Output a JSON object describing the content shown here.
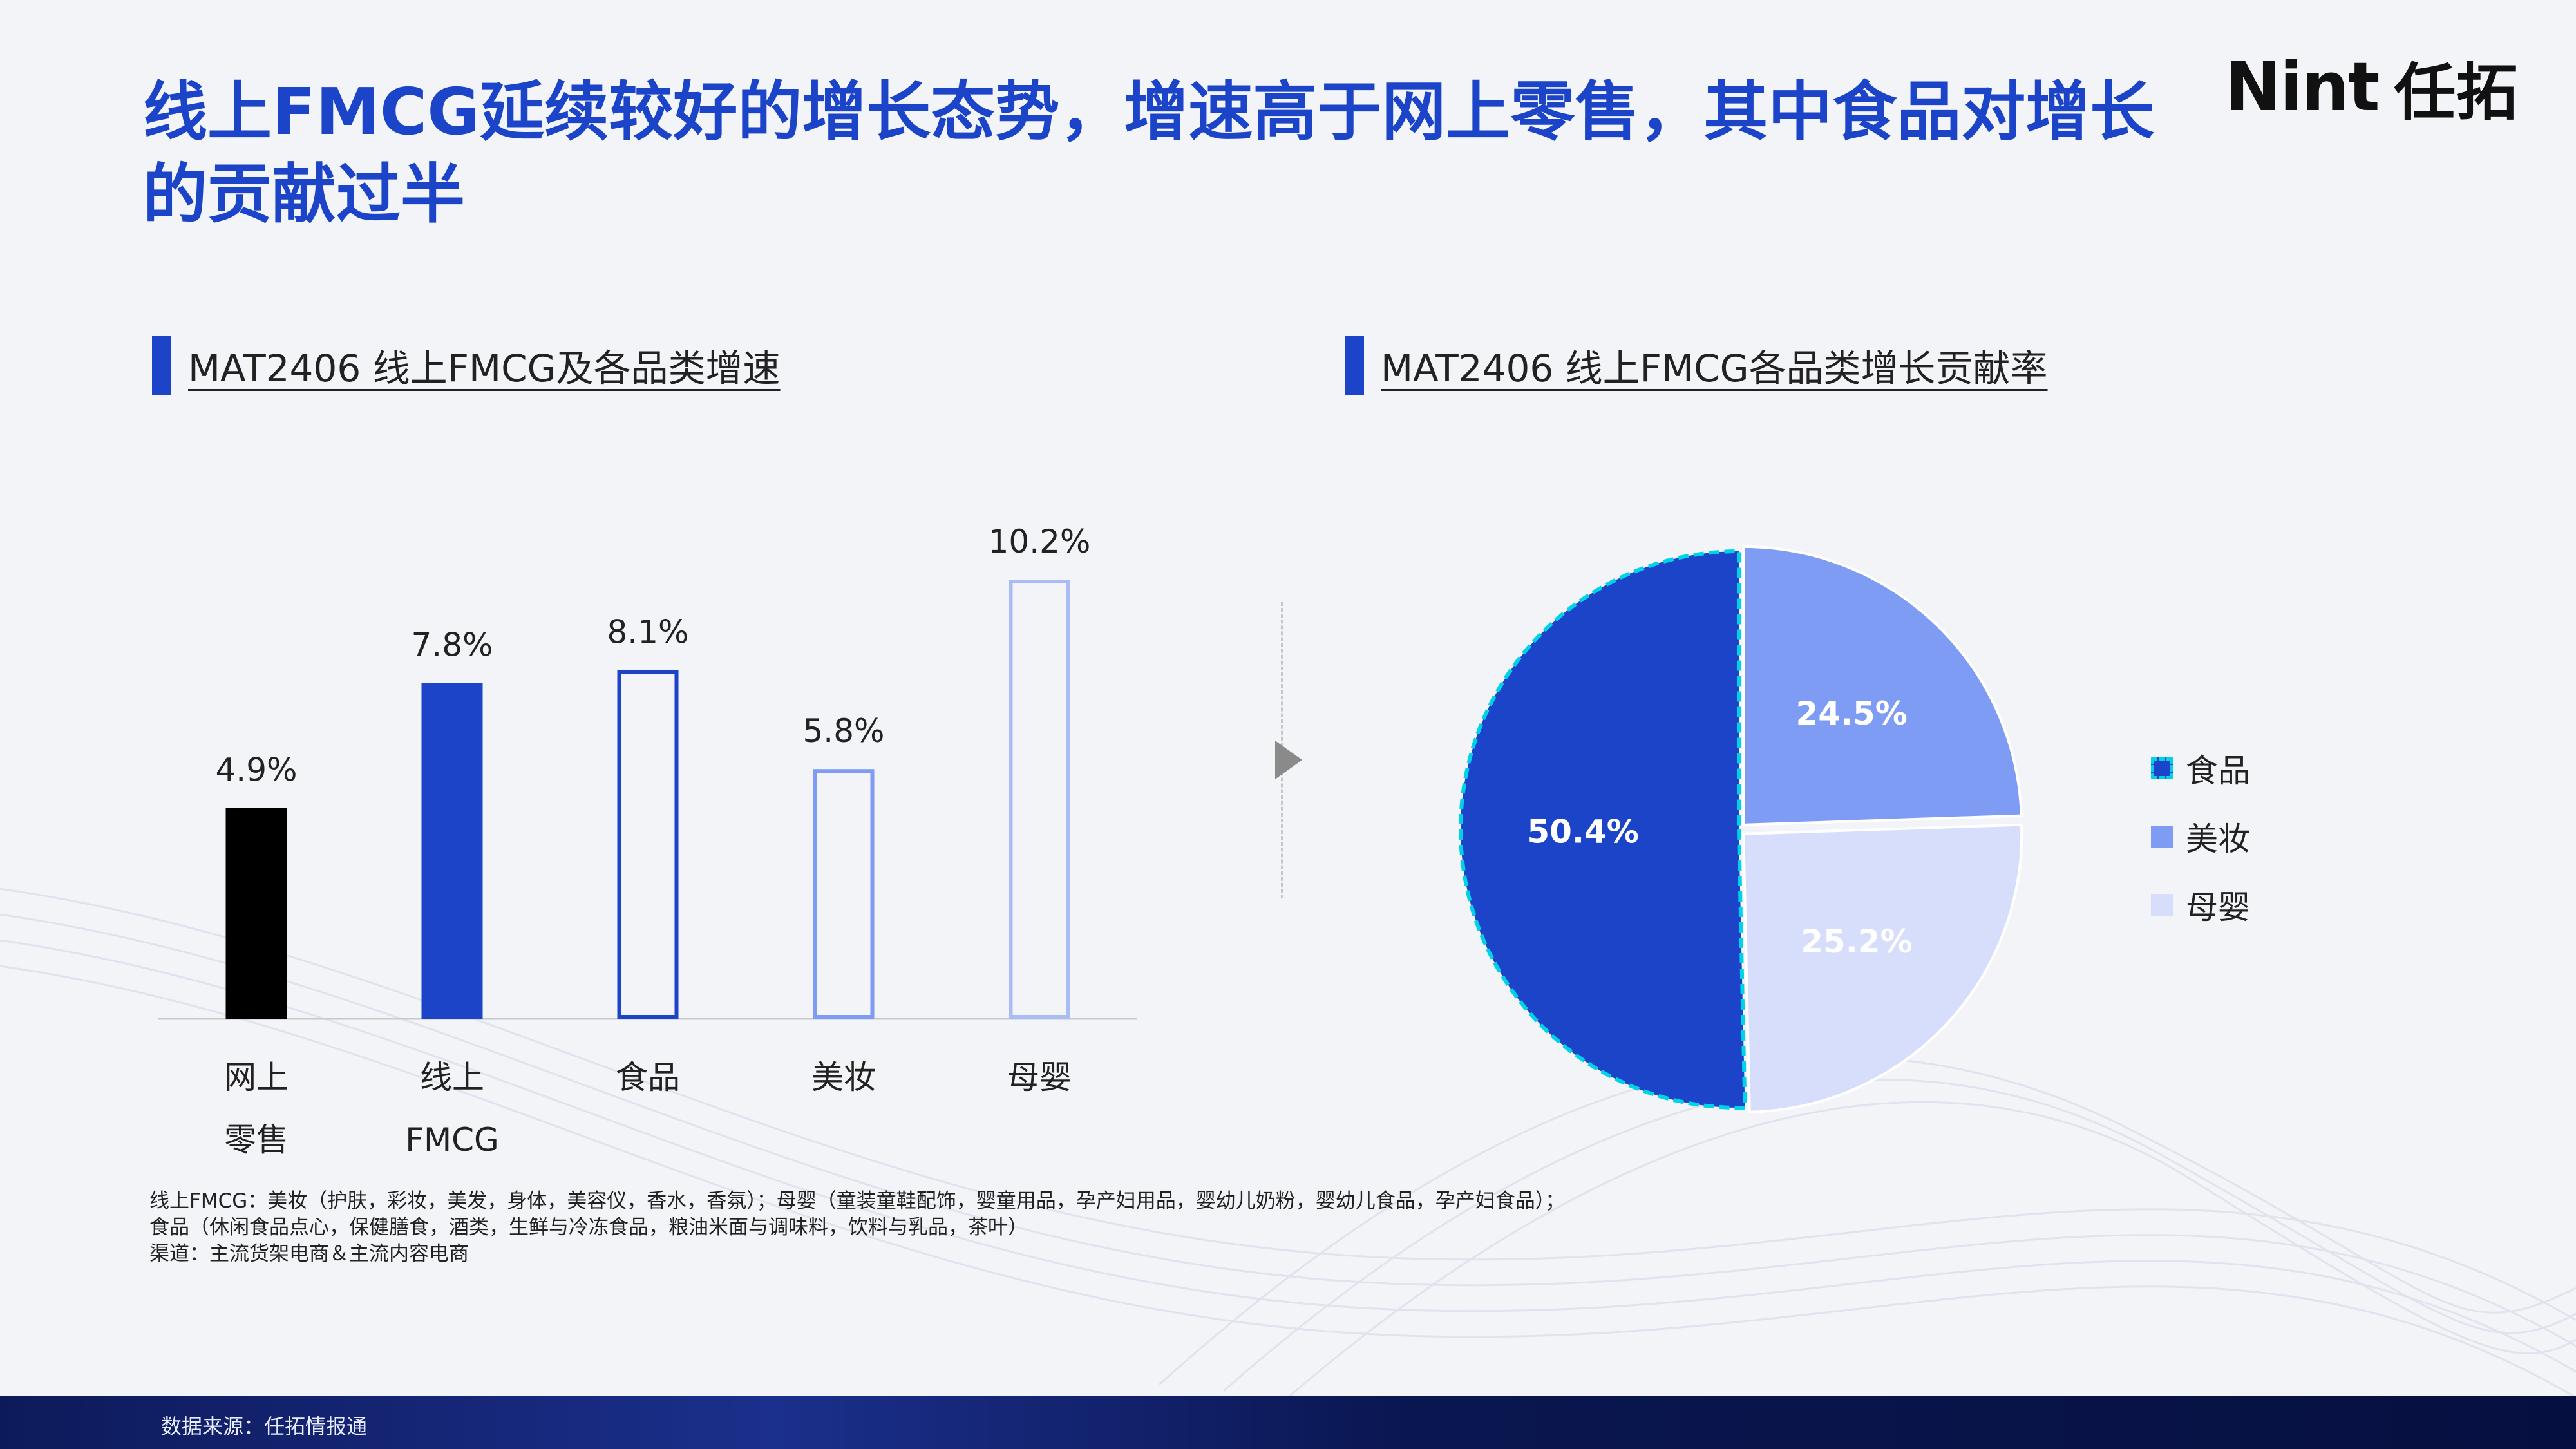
{
  "title": "线上FMCG延续较好的增长态势，增速高于网上零售，其中食品对增长的贡献过半",
  "logo": {
    "en": "Nint",
    "cn": "任拓"
  },
  "left_section_title": "MAT2406 线上FMCG及各品类增速",
  "right_section_title": "MAT2406 线上FMCG各品类增长贡献率",
  "colors": {
    "accent": "#1b44c8",
    "black": "#000000",
    "beauty": "#7f9cf5",
    "baby": "#d6defb",
    "food_outline": "#00d3e8"
  },
  "chart_data": [
    {
      "type": "bar",
      "title": "MAT2406 线上FMCG及各品类增速",
      "categories": [
        [
          "网上",
          "零售"
        ],
        [
          "线上",
          "FMCG"
        ],
        [
          "食品"
        ],
        [
          "美妆"
        ],
        [
          "母婴"
        ]
      ],
      "values": [
        4.9,
        7.8,
        8.1,
        5.8,
        10.2
      ],
      "value_labels": [
        "4.9%",
        "7.8%",
        "8.1%",
        "5.8%",
        "10.2%"
      ],
      "styles": [
        "solid-black",
        "solid-blue",
        "outline-darkblue",
        "outline-blue",
        "outline-lightblue"
      ],
      "unit": "%",
      "grid": false,
      "ylim": [
        0,
        10.2
      ]
    },
    {
      "type": "pie",
      "title": "MAT2406 线上FMCG各品类增长贡献率",
      "labels": [
        "食品",
        "美妆",
        "母婴"
      ],
      "values": [
        50.4,
        24.5,
        25.2
      ],
      "value_labels": [
        "50.4%",
        "24.5%",
        "25.2%"
      ],
      "colors": [
        "#1b44c8",
        "#7f9cf5",
        "#d6defb"
      ],
      "legend_position": "right"
    }
  ],
  "notes": [
    "线上FMCG：美妆（护肤，彩妆，美发，身体，美容仪，香水，香氛）；母婴（童装童鞋配饰，婴童用品，孕产妇用品，婴幼儿奶粉，婴幼儿食品，孕产妇食品）；",
    "食品（休闲食品点心，保健膳食，酒类，生鲜与冷冻食品，粮油米面与调味料，饮料与乳品，茶叶）",
    "渠道：主流货架电商＆主流内容电商"
  ],
  "footer_source": "数据来源：任拓情报通"
}
